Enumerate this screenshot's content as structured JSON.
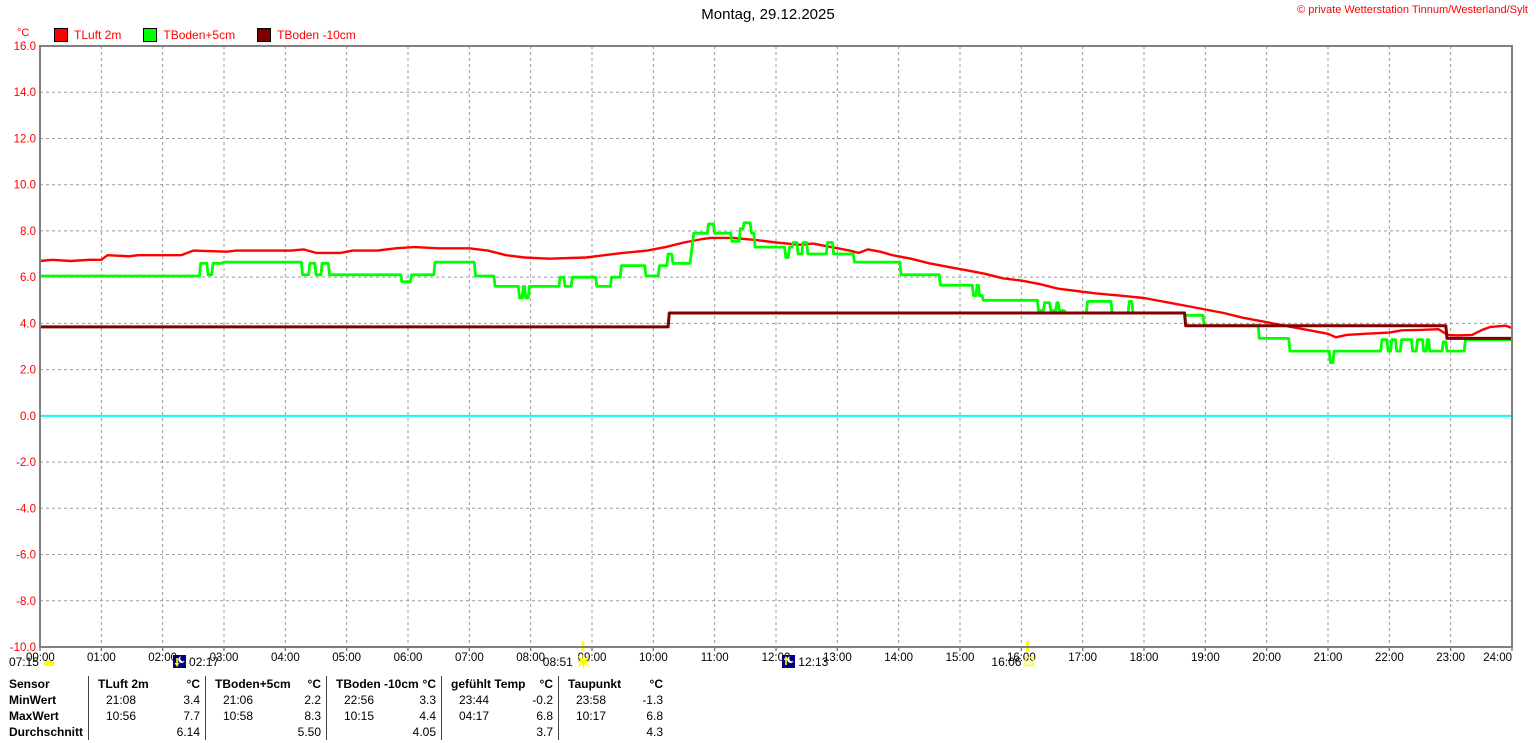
{
  "header": {
    "title": "Montag, 29.12.2025",
    "copyright": "© private Wetterstation Tinnum/Westerland/Sylt"
  },
  "legend": {
    "unit": "°C",
    "items": [
      {
        "label": "TLuft 2m",
        "color": "#ff0000"
      },
      {
        "label": "TBoden+5cm",
        "color": "#00ff00"
      },
      {
        "label": "TBoden -10cm",
        "color": "#800000"
      }
    ]
  },
  "chart_data": {
    "type": "line",
    "title": "Montag, 29.12.2025",
    "ylabel": "°C",
    "xlabel": "",
    "ylim": [
      -10,
      16
    ],
    "xlim": [
      0,
      24
    ],
    "grid": true,
    "legend_position": "top-left",
    "zero_line_color": "#00ffff",
    "grid_color": "#9a9a9a",
    "border_color": "#808080",
    "y_ticks": [
      "16.0",
      "14.0",
      "12.0",
      "10.0",
      "8.0",
      "6.0",
      "4.0",
      "2.0",
      "0.0",
      "-2.0",
      "-4.0",
      "-6.0",
      "-8.0",
      "-10.0"
    ],
    "x_ticks": [
      "00:00",
      "01:00",
      "02:00",
      "03:00",
      "04:00",
      "05:00",
      "06:00",
      "07:00",
      "08:00",
      "09:00",
      "10:00",
      "11:00",
      "12:00",
      "13:00",
      "14:00",
      "15:00",
      "16:00",
      "17:00",
      "18:00",
      "19:00",
      "20:00",
      "21:00",
      "22:00",
      "23:00",
      "24:00"
    ],
    "series": [
      {
        "name": "TLuft 2m",
        "color": "#ff0000",
        "width": 2.4,
        "points": [
          [
            0,
            6.7
          ],
          [
            0.2,
            6.75
          ],
          [
            0.5,
            6.7
          ],
          [
            0.8,
            6.75
          ],
          [
            1.0,
            6.75
          ],
          [
            1.1,
            6.95
          ],
          [
            1.45,
            6.9
          ],
          [
            1.6,
            6.95
          ],
          [
            2.3,
            6.95
          ],
          [
            2.5,
            7.15
          ],
          [
            3.05,
            7.1
          ],
          [
            3.2,
            7.15
          ],
          [
            4.1,
            7.15
          ],
          [
            4.3,
            7.2
          ],
          [
            4.5,
            7.05
          ],
          [
            4.9,
            7.05
          ],
          [
            5.1,
            7.15
          ],
          [
            5.5,
            7.15
          ],
          [
            5.8,
            7.25
          ],
          [
            6.1,
            7.3
          ],
          [
            6.5,
            7.25
          ],
          [
            7.0,
            7.25
          ],
          [
            7.3,
            7.15
          ],
          [
            7.6,
            6.95
          ],
          [
            7.9,
            6.85
          ],
          [
            8.3,
            6.8
          ],
          [
            8.9,
            6.85
          ],
          [
            9.2,
            6.95
          ],
          [
            9.5,
            7.05
          ],
          [
            9.9,
            7.15
          ],
          [
            10.2,
            7.3
          ],
          [
            10.5,
            7.5
          ],
          [
            10.8,
            7.65
          ],
          [
            10.93,
            7.7
          ],
          [
            11.3,
            7.7
          ],
          [
            11.7,
            7.6
          ],
          [
            12.0,
            7.5
          ],
          [
            12.4,
            7.4
          ],
          [
            12.6,
            7.45
          ],
          [
            12.9,
            7.3
          ],
          [
            13.2,
            7.15
          ],
          [
            13.35,
            7.05
          ],
          [
            13.5,
            7.2
          ],
          [
            13.7,
            7.1
          ],
          [
            13.9,
            6.95
          ],
          [
            14.2,
            6.8
          ],
          [
            14.5,
            6.6
          ],
          [
            14.8,
            6.45
          ],
          [
            15.1,
            6.3
          ],
          [
            15.4,
            6.15
          ],
          [
            15.7,
            5.95
          ],
          [
            16.0,
            5.85
          ],
          [
            16.3,
            5.7
          ],
          [
            16.6,
            5.5
          ],
          [
            16.9,
            5.4
          ],
          [
            17.2,
            5.3
          ],
          [
            17.6,
            5.2
          ],
          [
            18.0,
            5.1
          ],
          [
            18.4,
            4.9
          ],
          [
            18.7,
            4.75
          ],
          [
            19.0,
            4.6
          ],
          [
            19.3,
            4.45
          ],
          [
            19.6,
            4.25
          ],
          [
            20.0,
            4.05
          ],
          [
            20.4,
            3.85
          ],
          [
            20.7,
            3.7
          ],
          [
            21.0,
            3.55
          ],
          [
            21.13,
            3.4
          ],
          [
            21.3,
            3.5
          ],
          [
            21.6,
            3.55
          ],
          [
            22.0,
            3.6
          ],
          [
            22.2,
            3.7
          ],
          [
            22.5,
            3.72
          ],
          [
            22.8,
            3.75
          ],
          [
            22.95,
            3.5
          ],
          [
            23.1,
            3.48
          ],
          [
            23.35,
            3.5
          ],
          [
            23.5,
            3.7
          ],
          [
            23.65,
            3.85
          ],
          [
            23.9,
            3.9
          ],
          [
            24,
            3.8
          ]
        ]
      },
      {
        "name": "TBoden+5cm",
        "color": "#00ff00",
        "width": 2.8,
        "points": [
          [
            0,
            6.05
          ],
          [
            2.6,
            6.05
          ],
          [
            2.62,
            6.6
          ],
          [
            2.72,
            6.6
          ],
          [
            2.74,
            6.1
          ],
          [
            2.8,
            6.1
          ],
          [
            2.82,
            6.6
          ],
          [
            2.96,
            6.6
          ],
          [
            3.0,
            6.65
          ],
          [
            4.26,
            6.65
          ],
          [
            4.28,
            6.1
          ],
          [
            4.38,
            6.1
          ],
          [
            4.4,
            6.6
          ],
          [
            4.48,
            6.6
          ],
          [
            4.5,
            6.1
          ],
          [
            4.58,
            6.1
          ],
          [
            4.6,
            6.6
          ],
          [
            4.7,
            6.6
          ],
          [
            4.72,
            6.1
          ],
          [
            5.88,
            6.1
          ],
          [
            5.9,
            5.8
          ],
          [
            6.04,
            5.8
          ],
          [
            6.06,
            6.1
          ],
          [
            6.42,
            6.1
          ],
          [
            6.44,
            6.65
          ],
          [
            7.08,
            6.65
          ],
          [
            7.1,
            6.05
          ],
          [
            7.4,
            6.05
          ],
          [
            7.42,
            5.6
          ],
          [
            7.8,
            5.6
          ],
          [
            7.82,
            5.1
          ],
          [
            7.86,
            5.1
          ],
          [
            7.88,
            5.6
          ],
          [
            7.9,
            5.6
          ],
          [
            7.92,
            5.1
          ],
          [
            7.96,
            5.1
          ],
          [
            7.98,
            5.6
          ],
          [
            8.46,
            5.6
          ],
          [
            8.48,
            6.0
          ],
          [
            8.54,
            6.0
          ],
          [
            8.56,
            5.6
          ],
          [
            8.66,
            5.6
          ],
          [
            8.68,
            6.0
          ],
          [
            9.06,
            6.0
          ],
          [
            9.08,
            5.6
          ],
          [
            9.3,
            5.6
          ],
          [
            9.32,
            6.0
          ],
          [
            9.46,
            6.0
          ],
          [
            9.48,
            6.5
          ],
          [
            9.86,
            6.5
          ],
          [
            9.88,
            6.05
          ],
          [
            10.08,
            6.05
          ],
          [
            10.1,
            6.5
          ],
          [
            10.22,
            6.5
          ],
          [
            10.24,
            7.0
          ],
          [
            10.3,
            7.0
          ],
          [
            10.32,
            6.6
          ],
          [
            10.6,
            6.6
          ],
          [
            10.66,
            7.9
          ],
          [
            10.88,
            7.9
          ],
          [
            10.9,
            8.3
          ],
          [
            10.98,
            8.3
          ],
          [
            11.0,
            7.9
          ],
          [
            11.26,
            7.9
          ],
          [
            11.28,
            7.55
          ],
          [
            11.4,
            7.55
          ],
          [
            11.42,
            8.1
          ],
          [
            11.46,
            8.1
          ],
          [
            11.48,
            8.35
          ],
          [
            11.58,
            8.35
          ],
          [
            11.6,
            7.9
          ],
          [
            11.64,
            7.9
          ],
          [
            11.66,
            7.3
          ],
          [
            12.14,
            7.3
          ],
          [
            12.16,
            6.85
          ],
          [
            12.2,
            6.85
          ],
          [
            12.22,
            7.3
          ],
          [
            12.26,
            7.3
          ],
          [
            12.28,
            7.5
          ],
          [
            12.34,
            7.5
          ],
          [
            12.36,
            7.0
          ],
          [
            12.42,
            7.0
          ],
          [
            12.44,
            7.5
          ],
          [
            12.5,
            7.5
          ],
          [
            12.52,
            7.0
          ],
          [
            12.82,
            7.0
          ],
          [
            12.84,
            7.5
          ],
          [
            12.92,
            7.5
          ],
          [
            12.94,
            7.0
          ],
          [
            13.26,
            7.0
          ],
          [
            13.28,
            6.65
          ],
          [
            14.02,
            6.65
          ],
          [
            14.04,
            6.1
          ],
          [
            14.66,
            6.1
          ],
          [
            14.68,
            5.65
          ],
          [
            15.2,
            5.65
          ],
          [
            15.22,
            5.2
          ],
          [
            15.26,
            5.2
          ],
          [
            15.28,
            5.65
          ],
          [
            15.3,
            5.65
          ],
          [
            15.32,
            5.2
          ],
          [
            15.36,
            5.2
          ],
          [
            15.38,
            5.0
          ],
          [
            16.26,
            5.0
          ],
          [
            16.28,
            4.55
          ],
          [
            16.36,
            4.55
          ],
          [
            16.38,
            4.9
          ],
          [
            16.46,
            4.9
          ],
          [
            16.48,
            4.55
          ],
          [
            16.56,
            4.55
          ],
          [
            16.58,
            4.9
          ],
          [
            16.6,
            4.9
          ],
          [
            16.62,
            4.55
          ],
          [
            16.7,
            4.55
          ],
          [
            16.72,
            4.45
          ],
          [
            17.06,
            4.45
          ],
          [
            17.08,
            4.95
          ],
          [
            17.46,
            4.95
          ],
          [
            17.48,
            4.45
          ],
          [
            17.74,
            4.45
          ],
          [
            17.76,
            4.95
          ],
          [
            17.8,
            4.95
          ],
          [
            17.82,
            4.45
          ],
          [
            18.66,
            4.45
          ],
          [
            18.68,
            4.35
          ],
          [
            18.96,
            4.35
          ],
          [
            18.98,
            3.9
          ],
          [
            19.86,
            3.9
          ],
          [
            19.88,
            3.35
          ],
          [
            20.36,
            3.35
          ],
          [
            20.38,
            2.8
          ],
          [
            21.02,
            2.8
          ],
          [
            21.04,
            2.3
          ],
          [
            21.08,
            2.3
          ],
          [
            21.1,
            2.8
          ],
          [
            21.86,
            2.8
          ],
          [
            21.88,
            3.3
          ],
          [
            21.96,
            3.3
          ],
          [
            21.98,
            2.8
          ],
          [
            22.02,
            2.8
          ],
          [
            22.04,
            3.3
          ],
          [
            22.1,
            3.3
          ],
          [
            22.12,
            2.8
          ],
          [
            22.18,
            2.8
          ],
          [
            22.2,
            3.3
          ],
          [
            22.36,
            3.3
          ],
          [
            22.38,
            2.8
          ],
          [
            22.44,
            2.8
          ],
          [
            22.46,
            3.3
          ],
          [
            22.54,
            3.3
          ],
          [
            22.56,
            2.8
          ],
          [
            22.6,
            2.8
          ],
          [
            22.62,
            3.3
          ],
          [
            22.64,
            3.3
          ],
          [
            22.66,
            2.8
          ],
          [
            22.86,
            2.8
          ],
          [
            22.88,
            3.2
          ],
          [
            22.92,
            3.2
          ],
          [
            22.94,
            2.8
          ],
          [
            23.22,
            2.8
          ],
          [
            23.24,
            3.3
          ],
          [
            24,
            3.3
          ]
        ]
      },
      {
        "name": "TBoden -10cm",
        "color": "#800000",
        "width": 3,
        "points": [
          [
            0,
            3.85
          ],
          [
            10.24,
            3.85
          ],
          [
            10.26,
            4.45
          ],
          [
            18.66,
            4.45
          ],
          [
            18.68,
            3.9
          ],
          [
            22.92,
            3.9
          ],
          [
            22.94,
            3.35
          ],
          [
            24,
            3.35
          ]
        ]
      }
    ]
  },
  "events": {
    "markers": [
      {
        "label": "07:15",
        "icon": "moon-dome",
        "hour": 0.13,
        "label_side": "left"
      },
      {
        "label": "02:17",
        "icon": "moon-set",
        "hour": 2.283,
        "label_side": "right"
      },
      {
        "label": "08:51",
        "icon": "sun-rise",
        "hour": 8.85,
        "label_side": "left"
      },
      {
        "label": "12:13",
        "icon": "moon-rise",
        "hour": 12.217,
        "label_side": "right"
      },
      {
        "label": "16:06",
        "icon": "sun-set",
        "hour": 16.1,
        "label_side": "left"
      }
    ],
    "axis_tick_hours": [
      8.85,
      16.1
    ],
    "axis_tick_color": "#ffff00"
  },
  "stats_table": {
    "corner_header": "Sensor",
    "row_labels": [
      "MinWert",
      "MaxWert",
      "Durchschnitt"
    ],
    "columns": [
      {
        "name": "TLuft 2m",
        "unit": "°C",
        "min_time": "21:08",
        "min_value": "3.4",
        "max_time": "10:56",
        "max_value": "7.7",
        "avg": "6.14"
      },
      {
        "name": "TBoden+5cm",
        "unit": "°C",
        "min_time": "21:06",
        "min_value": "2.2",
        "max_time": "10:58",
        "max_value": "8.3",
        "avg": "5.50"
      },
      {
        "name": "TBoden -10cm",
        "unit": "°C",
        "min_time": "22:56",
        "min_value": "3.3",
        "max_time": "10:15",
        "max_value": "4.4",
        "avg": "4.05"
      },
      {
        "name": "gefühlt Temp",
        "unit": "°C",
        "min_time": "23:44",
        "min_value": "-0.2",
        "max_time": "04:17",
        "max_value": "6.8",
        "avg": "3.7"
      },
      {
        "name": "Taupunkt",
        "unit": "°C",
        "min_time": "23:58",
        "min_value": "-1.3",
        "max_time": "10:17",
        "max_value": "6.8",
        "avg": "4.3"
      }
    ]
  }
}
